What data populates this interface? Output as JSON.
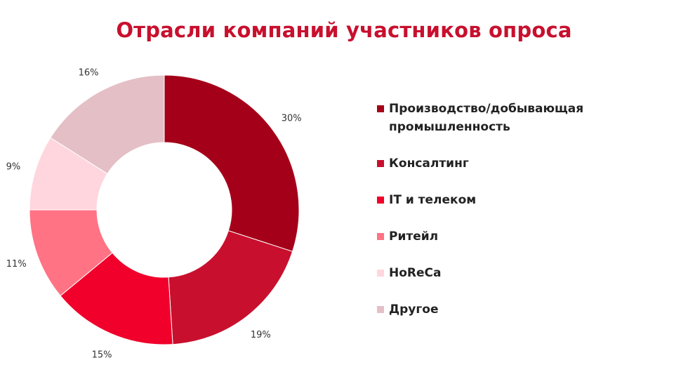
{
  "chart_data": {
    "type": "pie",
    "donut": true,
    "title": "Отрасли компаний участников опроса",
    "categories": [
      "Производство/добывающая промышленность",
      "Консалтинг",
      "IT и телеком",
      "Ритейл",
      "HoReCa",
      "Другое"
    ],
    "values": [
      30,
      19,
      15,
      11,
      9,
      16
    ],
    "value_labels": [
      "30%",
      "19%",
      "15%",
      "11%",
      "9%",
      "16%"
    ],
    "colors": [
      "#a50019",
      "#c8102e",
      "#f0002a",
      "#ff7384",
      "#ffd6de",
      "#e4bfc6"
    ],
    "legend_position": "right",
    "legend_lines": [
      [
        "Производство/добывающая",
        "промышленность"
      ],
      [
        "Консалтинг"
      ],
      [
        "IT и телеком"
      ],
      [
        "Ритейл"
      ],
      [
        "HoReCa"
      ],
      [
        "Другое"
      ]
    ]
  }
}
